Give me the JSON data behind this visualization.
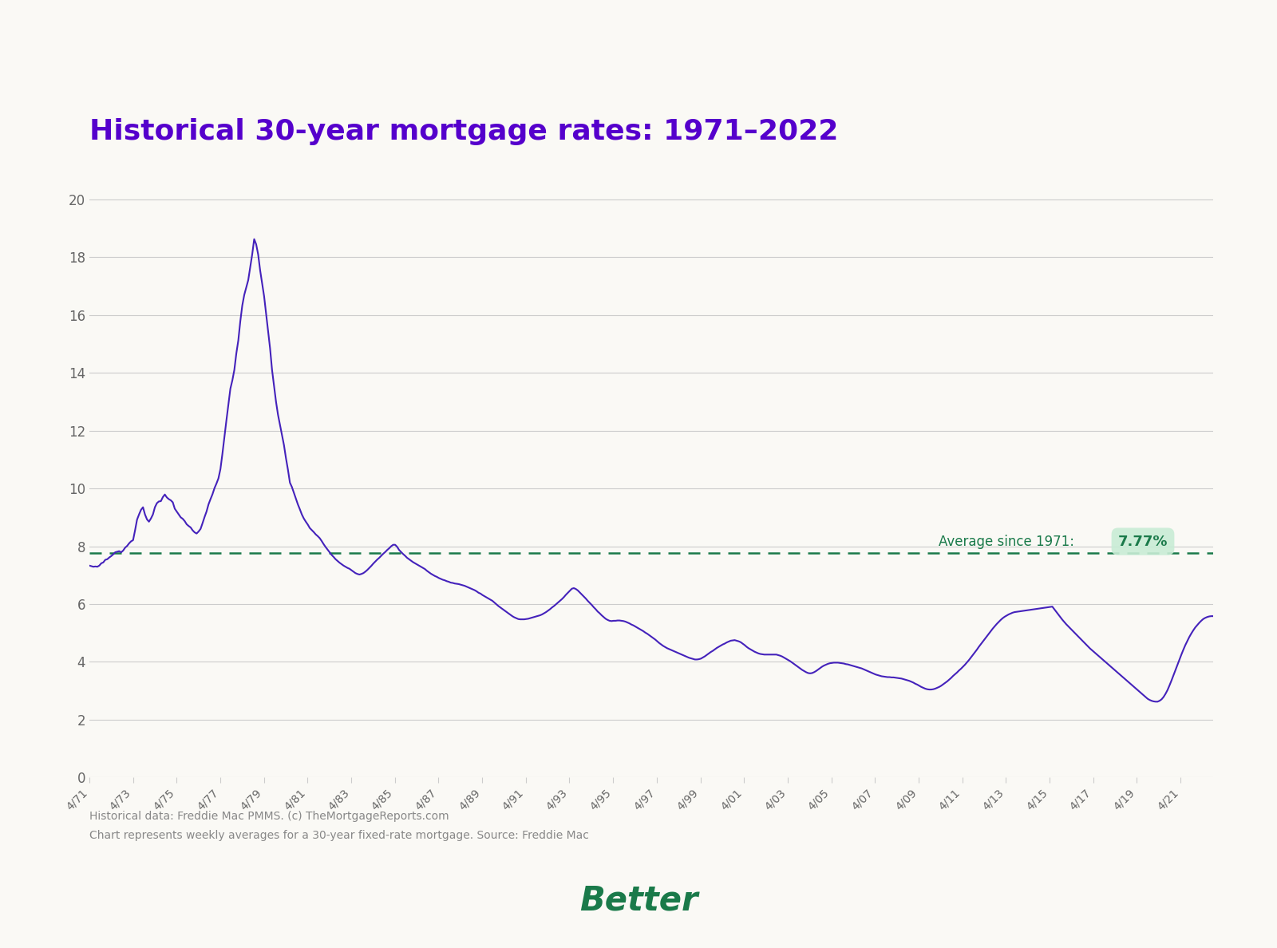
{
  "title": "Historical 30-year mortgage rates: 1971–2022",
  "title_color": "#5500cc",
  "background_color": "#faf9f5",
  "line_color": "#4422bb",
  "average_value": 7.77,
  "average_color": "#1a7a4a",
  "average_label": "Average since 1971:",
  "average_value_str": "7.77%",
  "footer_line1": "Historical data: Freddie Mac PMMS. (c) TheMortgageReports.com",
  "footer_line2": "Chart represents weekly averages for a 30-year fixed-rate mortgage. Source: Freddie Mac",
  "footer_color": "#888888",
  "better_color": "#1a7a4a",
  "yticks": [
    0,
    2,
    4,
    6,
    8,
    10,
    12,
    14,
    16,
    18,
    20
  ],
  "xtick_labels": [
    "4/71",
    "4/73",
    "4/75",
    "4/77",
    "4/79",
    "4/81",
    "4/83",
    "4/85",
    "4/87",
    "4/89",
    "4/91",
    "4/93",
    "4/95",
    "4/97",
    "4/99",
    "4/01",
    "4/03",
    "4/05",
    "4/07",
    "4/09",
    "4/11",
    "4/13",
    "4/15",
    "4/17",
    "4/19",
    "4/21"
  ],
  "mortgage_rates": [
    7.33,
    7.31,
    7.29,
    7.3,
    7.29,
    7.33,
    7.41,
    7.44,
    7.53,
    7.55,
    7.61,
    7.66,
    7.72,
    7.79,
    7.81,
    7.83,
    7.79,
    7.85,
    7.95,
    8.01,
    8.1,
    8.17,
    8.21,
    8.55,
    8.92,
    9.1,
    9.26,
    9.35,
    9.1,
    8.93,
    8.85,
    8.96,
    9.1,
    9.35,
    9.49,
    9.55,
    9.56,
    9.7,
    9.79,
    9.69,
    9.63,
    9.59,
    9.52,
    9.3,
    9.2,
    9.1,
    9.0,
    8.95,
    8.87,
    8.76,
    8.7,
    8.65,
    8.55,
    8.48,
    8.44,
    8.51,
    8.6,
    8.8,
    9.01,
    9.2,
    9.45,
    9.63,
    9.8,
    10.01,
    10.17,
    10.35,
    10.67,
    11.2,
    11.78,
    12.35,
    12.9,
    13.45,
    13.74,
    14.1,
    14.67,
    15.12,
    15.78,
    16.33,
    16.7,
    16.95,
    17.21,
    17.66,
    18.1,
    18.63,
    18.45,
    18.1,
    17.55,
    17.1,
    16.65,
    16.05,
    15.45,
    14.85,
    14.1,
    13.55,
    13.0,
    12.55,
    12.2,
    11.85,
    11.5,
    11.05,
    10.65,
    10.2,
    10.05,
    9.85,
    9.65,
    9.45,
    9.28,
    9.1,
    8.96,
    8.85,
    8.75,
    8.63,
    8.56,
    8.49,
    8.41,
    8.35,
    8.28,
    8.18,
    8.07,
    7.97,
    7.88,
    7.79,
    7.7,
    7.63,
    7.55,
    7.49,
    7.43,
    7.38,
    7.33,
    7.29,
    7.25,
    7.22,
    7.17,
    7.12,
    7.07,
    7.04,
    7.02,
    7.04,
    7.07,
    7.12,
    7.18,
    7.25,
    7.32,
    7.4,
    7.47,
    7.54,
    7.6,
    7.67,
    7.74,
    7.8,
    7.87,
    7.93,
    8.0,
    8.05,
    8.05,
    7.98,
    7.87,
    7.8,
    7.73,
    7.67,
    7.6,
    7.55,
    7.5,
    7.45,
    7.41,
    7.37,
    7.33,
    7.29,
    7.25,
    7.21,
    7.15,
    7.1,
    7.05,
    7.01,
    6.97,
    6.94,
    6.9,
    6.87,
    6.84,
    6.82,
    6.79,
    6.77,
    6.74,
    6.73,
    6.71,
    6.7,
    6.69,
    6.67,
    6.65,
    6.63,
    6.6,
    6.57,
    6.54,
    6.51,
    6.48,
    6.44,
    6.39,
    6.36,
    6.31,
    6.27,
    6.23,
    6.19,
    6.15,
    6.11,
    6.05,
    5.99,
    5.93,
    5.88,
    5.83,
    5.78,
    5.73,
    5.68,
    5.63,
    5.58,
    5.54,
    5.51,
    5.48,
    5.47,
    5.47,
    5.47,
    5.48,
    5.49,
    5.51,
    5.53,
    5.55,
    5.57,
    5.59,
    5.61,
    5.64,
    5.68,
    5.72,
    5.77,
    5.82,
    5.88,
    5.93,
    5.99,
    6.05,
    6.11,
    6.17,
    6.24,
    6.32,
    6.39,
    6.46,
    6.53,
    6.55,
    6.52,
    6.47,
    6.4,
    6.33,
    6.26,
    6.19,
    6.11,
    6.04,
    5.97,
    5.89,
    5.82,
    5.74,
    5.68,
    5.61,
    5.55,
    5.49,
    5.45,
    5.42,
    5.41,
    5.42,
    5.42,
    5.43,
    5.43,
    5.42,
    5.41,
    5.39,
    5.36,
    5.33,
    5.29,
    5.26,
    5.22,
    5.18,
    5.14,
    5.1,
    5.06,
    5.01,
    4.97,
    4.92,
    4.87,
    4.82,
    4.77,
    4.71,
    4.65,
    4.6,
    4.55,
    4.51,
    4.47,
    4.44,
    4.41,
    4.38,
    4.35,
    4.32,
    4.29,
    4.26,
    4.23,
    4.2,
    4.17,
    4.14,
    4.12,
    4.1,
    4.08,
    4.08,
    4.09,
    4.11,
    4.15,
    4.19,
    4.24,
    4.29,
    4.34,
    4.38,
    4.43,
    4.48,
    4.52,
    4.56,
    4.6,
    4.63,
    4.67,
    4.7,
    4.73,
    4.74,
    4.75,
    4.73,
    4.71,
    4.68,
    4.63,
    4.58,
    4.52,
    4.47,
    4.43,
    4.39,
    4.35,
    4.32,
    4.29,
    4.27,
    4.26,
    4.25,
    4.25,
    4.25,
    4.25,
    4.25,
    4.25,
    4.25,
    4.23,
    4.21,
    4.18,
    4.14,
    4.1,
    4.06,
    4.02,
    3.97,
    3.92,
    3.87,
    3.82,
    3.77,
    3.72,
    3.68,
    3.64,
    3.61,
    3.6,
    3.61,
    3.64,
    3.68,
    3.73,
    3.78,
    3.83,
    3.87,
    3.9,
    3.93,
    3.95,
    3.96,
    3.97,
    3.97,
    3.97,
    3.96,
    3.95,
    3.94,
    3.92,
    3.91,
    3.89,
    3.87,
    3.85,
    3.83,
    3.81,
    3.79,
    3.77,
    3.74,
    3.71,
    3.68,
    3.65,
    3.62,
    3.59,
    3.56,
    3.54,
    3.52,
    3.5,
    3.49,
    3.48,
    3.47,
    3.47,
    3.46,
    3.46,
    3.45,
    3.44,
    3.43,
    3.42,
    3.4,
    3.38,
    3.36,
    3.34,
    3.31,
    3.28,
    3.24,
    3.21,
    3.17,
    3.13,
    3.1,
    3.07,
    3.05,
    3.04,
    3.04,
    3.05,
    3.07,
    3.1,
    3.13,
    3.17,
    3.22,
    3.27,
    3.32,
    3.38,
    3.44,
    3.51,
    3.57,
    3.63,
    3.7,
    3.76,
    3.83,
    3.9,
    3.98,
    4.06,
    4.15,
    4.24,
    4.33,
    4.42,
    4.52,
    4.61,
    4.7,
    4.79,
    4.88,
    4.97,
    5.06,
    5.15,
    5.23,
    5.31,
    5.38,
    5.45,
    5.51,
    5.56,
    5.6,
    5.64,
    5.67,
    5.7,
    5.72,
    5.73,
    5.74,
    5.75,
    5.76,
    5.77,
    5.78,
    5.79,
    5.8,
    5.81,
    5.82,
    5.83,
    5.84,
    5.85,
    5.86,
    5.87,
    5.88,
    5.89,
    5.9,
    5.91,
    5.82,
    5.73,
    5.64,
    5.55,
    5.46,
    5.38,
    5.3,
    5.23,
    5.16,
    5.09,
    5.02,
    4.95,
    4.88,
    4.81,
    4.74,
    4.67,
    4.6,
    4.53,
    4.46,
    4.4,
    4.34,
    4.28,
    4.22,
    4.16,
    4.1,
    4.04,
    3.98,
    3.92,
    3.86,
    3.8,
    3.74,
    3.68,
    3.62,
    3.56,
    3.5,
    3.44,
    3.38,
    3.32,
    3.26,
    3.2,
    3.14,
    3.08,
    3.02,
    2.96,
    2.9,
    2.84,
    2.78,
    2.72,
    2.68,
    2.65,
    2.63,
    2.62,
    2.62,
    2.65,
    2.7,
    2.78,
    2.89,
    3.02,
    3.18,
    3.35,
    3.53,
    3.71,
    3.89,
    4.07,
    4.25,
    4.42,
    4.58,
    4.72,
    4.86,
    4.98,
    5.09,
    5.19,
    5.27,
    5.35,
    5.42,
    5.48,
    5.52,
    5.55,
    5.57,
    5.58,
    5.58
  ]
}
